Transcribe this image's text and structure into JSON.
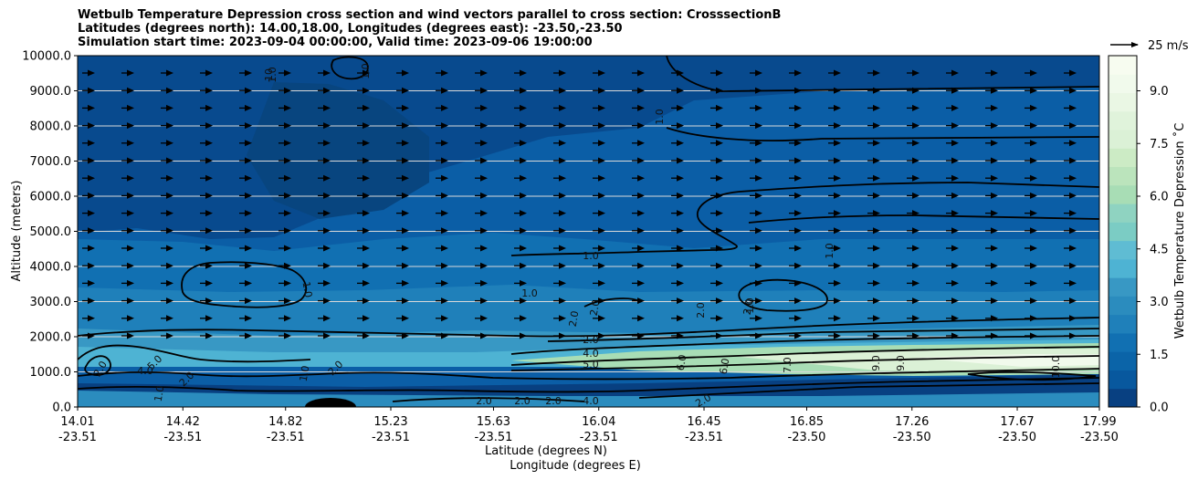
{
  "chart_data": {
    "type": "contour",
    "title": "Wetbulb Temperature Depression cross section and wind vectors parallel to cross section: CrosssectionB",
    "subtitle_lines": [
      "Latitudes (degrees north): 14.00,18.00, Longitudes (degrees east): -23.50,-23.50",
      "Simulation start time: 2023-09-04 00:00:00, Valid time: 2023-09-06 19:00:00"
    ],
    "ylabel": "Altitude (meters)",
    "xlabel_lines": [
      "Latitude (degrees N)",
      "Longitude (degrees E)"
    ],
    "ylim": [
      0,
      10000
    ],
    "xlim": [
      14.01,
      17.99
    ],
    "y_ticks": [
      {
        "value": 0,
        "label": "0.0"
      },
      {
        "value": 1000,
        "label": "1000.0"
      },
      {
        "value": 2000,
        "label": "2000.0"
      },
      {
        "value": 3000,
        "label": "3000.0"
      },
      {
        "value": 4000,
        "label": "4000.0"
      },
      {
        "value": 5000,
        "label": "5000.0"
      },
      {
        "value": 6000,
        "label": "6000.0"
      },
      {
        "value": 7000,
        "label": "7000.0"
      },
      {
        "value": 8000,
        "label": "8000.0"
      },
      {
        "value": 9000,
        "label": "9000.0"
      },
      {
        "value": 10000,
        "label": "10000.0"
      }
    ],
    "x_ticks": [
      {
        "value": 14.01,
        "lat": "14.01",
        "lon": "-23.51"
      },
      {
        "value": 14.42,
        "lat": "14.42",
        "lon": "-23.51"
      },
      {
        "value": 14.82,
        "lat": "14.82",
        "lon": "-23.51"
      },
      {
        "value": 15.23,
        "lat": "15.23",
        "lon": "-23.51"
      },
      {
        "value": 15.63,
        "lat": "15.63",
        "lon": "-23.51"
      },
      {
        "value": 16.04,
        "lat": "16.04",
        "lon": "-23.51"
      },
      {
        "value": 16.45,
        "lat": "16.45",
        "lon": "-23.51"
      },
      {
        "value": 16.85,
        "lat": "16.85",
        "lon": "-23.50"
      },
      {
        "value": 17.26,
        "lat": "17.26",
        "lon": "-23.50"
      },
      {
        "value": 17.67,
        "lat": "17.67",
        "lon": "-23.50"
      },
      {
        "value": 17.99,
        "lat": "17.99",
        "lon": "-23.50"
      }
    ],
    "colorbar": {
      "label": "Wetbulb Temperature Depression ˚C",
      "range": [
        0,
        10
      ],
      "ticks": [
        {
          "value": 0,
          "label": "0.0"
        },
        {
          "value": 1.5,
          "label": "1.5"
        },
        {
          "value": 3,
          "label": "3.0"
        },
        {
          "value": 4.5,
          "label": "4.5"
        },
        {
          "value": 6,
          "label": "6.0"
        },
        {
          "value": 7.5,
          "label": "7.5"
        },
        {
          "value": 9,
          "label": "9.0"
        }
      ],
      "colors": [
        "#084081",
        "#08589e",
        "#0b64a8",
        "#1170b2",
        "#1f80ba",
        "#2b8cbe",
        "#3898c4",
        "#4eb3d3",
        "#5fbcd3",
        "#7bccc4",
        "#8fd3c1",
        "#a8ddb5",
        "#bbe4bc",
        "#ccebc5",
        "#dbf1d6",
        "#e0f3db",
        "#eaf7e4",
        "#f1faec",
        "#f7fcf0"
      ]
    },
    "wind_reference": {
      "label": "25 m/s",
      "speed": 25
    },
    "grid": true,
    "contour_labels": [
      "1.0",
      "1.0",
      "1.0",
      "1.0",
      "1.0",
      "1.0",
      "1.0",
      "1.0",
      "2.0",
      "2.0",
      "2.0",
      "2.0",
      "2.0",
      "2.0",
      "2.0",
      "2.0",
      "2.0",
      "2.0",
      "2.0",
      "4.0",
      "4.0",
      "4.0",
      "5.0",
      "5.0",
      "6.0",
      "6.0",
      "7.0",
      "9.0",
      "9.0",
      "10.0",
      "1.0",
      "1.0",
      "2.0",
      "10"
    ]
  }
}
